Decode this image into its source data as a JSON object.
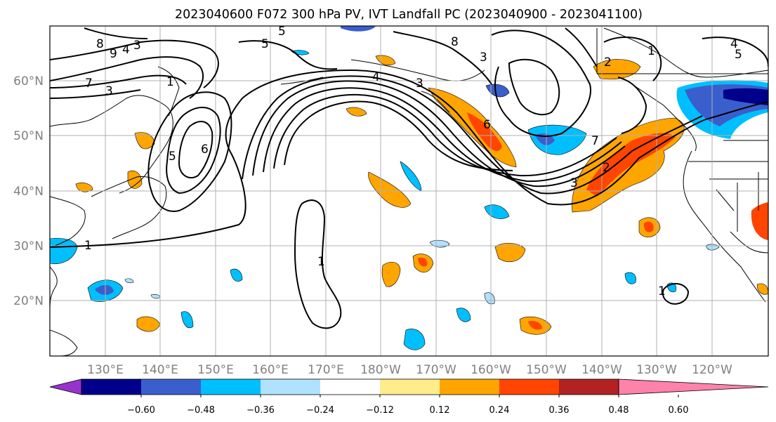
{
  "title": "2023040600 F072 300 hPa PV, IVT Landfall PC (2023040900 - 2023041100)",
  "map": {
    "lon_labels": [
      "130°E",
      "140°E",
      "150°E",
      "160°E",
      "170°E",
      "180°W",
      "170°W",
      "160°W",
      "150°W",
      "140°W",
      "130°W",
      "120°W"
    ],
    "lat_labels": [
      "60°N",
      "50°N",
      "40°N",
      "30°N",
      "20°N"
    ],
    "contour_labels": [
      "8",
      "9",
      "3",
      "4",
      "3",
      "5",
      "7",
      "1",
      "5",
      "6",
      "1",
      "4",
      "3",
      "5",
      "8",
      "3",
      "6",
      "7",
      "3",
      "2",
      "1",
      "4",
      "5",
      "2",
      "1",
      "1"
    ]
  },
  "colorbar": {
    "tick_labels": [
      "−0.60",
      "−0.48",
      "−0.36",
      "−0.24",
      "−0.12",
      "0.12",
      "0.24",
      "0.36",
      "0.48",
      "0.60"
    ],
    "colors": [
      "#9932cc",
      "#00008b",
      "#3a5fcd",
      "#00bfff",
      "#b0e2ff",
      "#ffffff",
      "#ffec8b",
      "#ffa500",
      "#ff4500",
      "#b22222",
      "#ff82ab"
    ]
  }
}
